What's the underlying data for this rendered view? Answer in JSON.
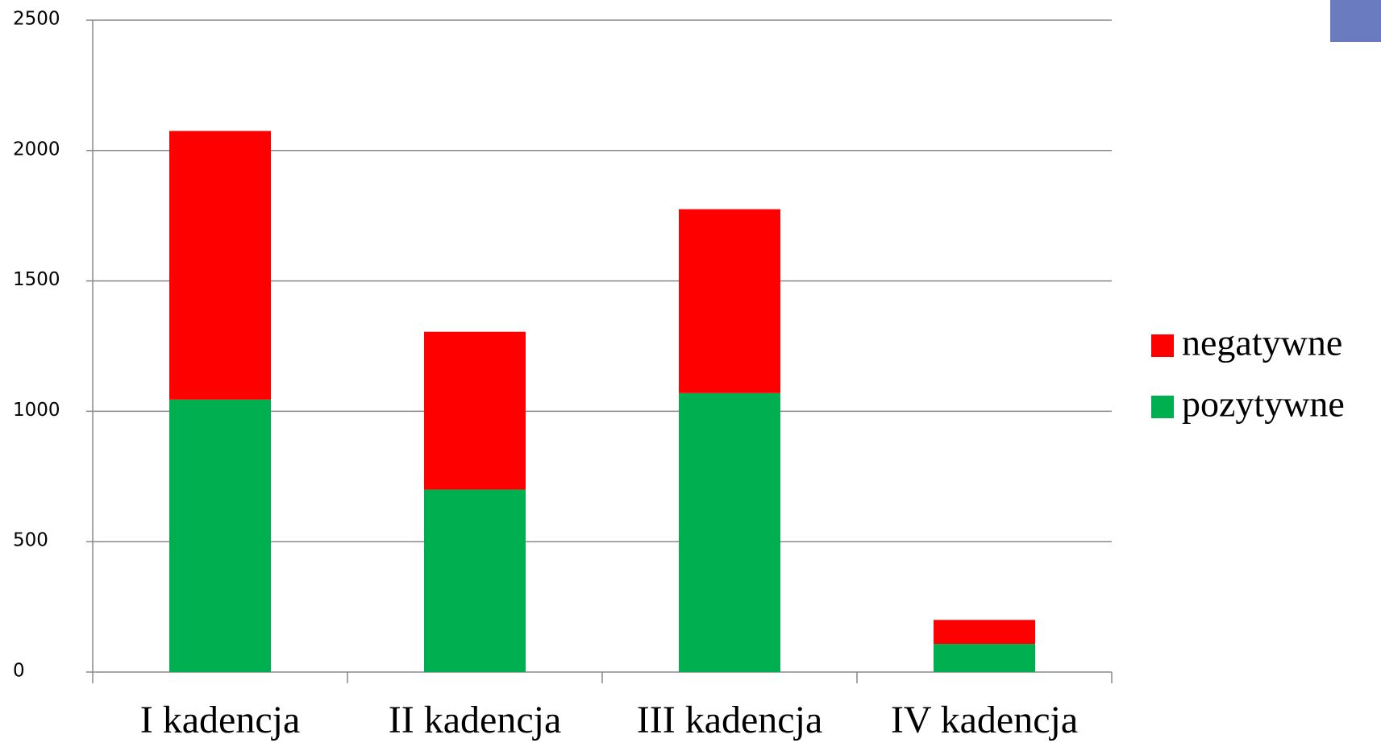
{
  "chart_data": {
    "type": "stacked_bar",
    "categories": [
      "I kadencja",
      "II kadencja",
      "III kadencja",
      "IV kadencja"
    ],
    "series": [
      {
        "name": "pozytywne",
        "color": "#00b050",
        "values": [
          1045,
          700,
          1070,
          108
        ]
      },
      {
        "name": "negatywne",
        "color": "#ff0000",
        "values": [
          1030,
          605,
          705,
          92
        ]
      }
    ],
    "ylim": [
      0,
      2500
    ],
    "yticks": [
      0,
      500,
      1000,
      1500,
      2000,
      2500
    ],
    "grid": true,
    "legend": "right"
  }
}
